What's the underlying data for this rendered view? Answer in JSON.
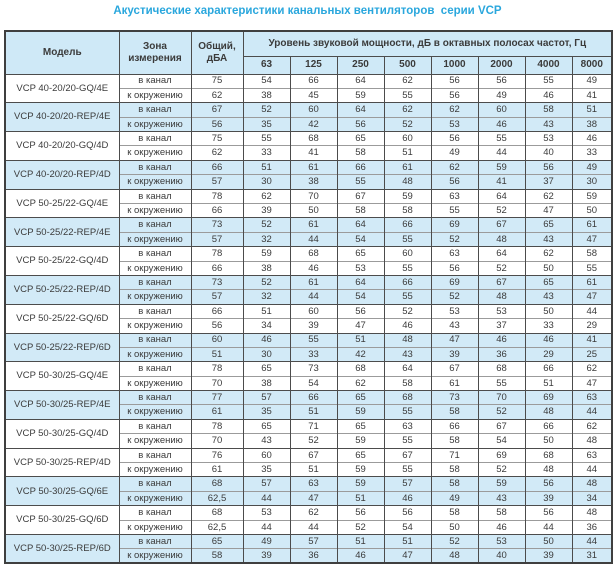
{
  "title": "Акустические характеристики канальных вентиляторов  серии VCP",
  "colors": {
    "title_text": "#2aa7dd",
    "header_fill": "#cfe9f7",
    "shaded_row_fill": "#d2eaf7",
    "border_dark": "#4c4c4c",
    "border_light": "#9b9b9b",
    "text": "#3b3b3b"
  },
  "table": {
    "headers": {
      "model": "Модель",
      "zone": "Зона измерения",
      "total": "Общий, дБА",
      "band_group": "Уровень звуковой мощности, дБ в октавных полосах частот, Гц",
      "bands": [
        "63",
        "125",
        "250",
        "500",
        "1000",
        "2000",
        "4000",
        "8000"
      ]
    },
    "groups": [
      {
        "model": "VCP 40-20/20-GQ/4E",
        "shaded": false,
        "rows": [
          {
            "zone": "в канал",
            "total": "75",
            "bands": [
              54,
              66,
              64,
              62,
              56,
              56,
              55,
              49
            ]
          },
          {
            "zone": "к окружению",
            "total": "62",
            "bands": [
              38,
              45,
              59,
              55,
              56,
              49,
              46,
              41
            ]
          }
        ]
      },
      {
        "model": "VCP 40-20/20-REP/4E",
        "shaded": true,
        "rows": [
          {
            "zone": "в канал",
            "total": "67",
            "bands": [
              52,
              60,
              64,
              62,
              62,
              60,
              58,
              51
            ]
          },
          {
            "zone": "к окружению",
            "total": "56",
            "bands": [
              35,
              42,
              56,
              52,
              53,
              46,
              43,
              38
            ]
          }
        ]
      },
      {
        "model": "VCP 40-20/20-GQ/4D",
        "shaded": false,
        "rows": [
          {
            "zone": "в канал",
            "total": "75",
            "bands": [
              55,
              68,
              65,
              60,
              56,
              55,
              53,
              46
            ]
          },
          {
            "zone": "к окружению",
            "total": "62",
            "bands": [
              33,
              41,
              58,
              51,
              49,
              44,
              40,
              33
            ]
          }
        ]
      },
      {
        "model": "VCP 40-20/20-REP/4D",
        "shaded": true,
        "rows": [
          {
            "zone": "в канал",
            "total": "66",
            "bands": [
              51,
              61,
              66,
              61,
              62,
              59,
              56,
              49
            ]
          },
          {
            "zone": "к окружению",
            "total": "57",
            "bands": [
              30,
              38,
              55,
              48,
              56,
              41,
              37,
              30
            ]
          }
        ]
      },
      {
        "model": "VCP 50-25/22-GQ/4E",
        "shaded": false,
        "rows": [
          {
            "zone": "в канал",
            "total": "78",
            "bands": [
              62,
              70,
              67,
              59,
              63,
              64,
              62,
              59
            ]
          },
          {
            "zone": "к окружению",
            "total": "66",
            "bands": [
              39,
              50,
              58,
              58,
              55,
              52,
              47,
              50
            ]
          }
        ]
      },
      {
        "model": "VCP 50-25/22-REP/4E",
        "shaded": true,
        "rows": [
          {
            "zone": "в канал",
            "total": "73",
            "bands": [
              52,
              61,
              64,
              66,
              69,
              67,
              65,
              61
            ]
          },
          {
            "zone": "к окружению",
            "total": "57",
            "bands": [
              32,
              44,
              54,
              55,
              52,
              48,
              43,
              47
            ]
          }
        ]
      },
      {
        "model": "VCP 50-25/22-GQ/4D",
        "shaded": false,
        "rows": [
          {
            "zone": "в канал",
            "total": "78",
            "bands": [
              59,
              68,
              65,
              60,
              63,
              64,
              62,
              58
            ]
          },
          {
            "zone": "к окружению",
            "total": "66",
            "bands": [
              38,
              46,
              53,
              55,
              56,
              52,
              50,
              55
            ]
          }
        ]
      },
      {
        "model": "VCP 50-25/22-REP/4D",
        "shaded": true,
        "rows": [
          {
            "zone": "в канал",
            "total": "73",
            "bands": [
              52,
              61,
              64,
              66,
              69,
              67,
              65,
              61
            ]
          },
          {
            "zone": "к окружению",
            "total": "57",
            "bands": [
              32,
              44,
              54,
              55,
              52,
              48,
              43,
              47
            ]
          }
        ]
      },
      {
        "model": "VCP 50-25/22-GQ/6D",
        "shaded": false,
        "rows": [
          {
            "zone": "в канал",
            "total": "66",
            "bands": [
              51,
              60,
              56,
              52,
              53,
              53,
              50,
              44
            ]
          },
          {
            "zone": "к окружению",
            "total": "56",
            "bands": [
              34,
              39,
              47,
              46,
              43,
              37,
              33,
              29
            ]
          }
        ]
      },
      {
        "model": "VCP 50-25/22-REP/6D",
        "shaded": true,
        "rows": [
          {
            "zone": "в канал",
            "total": "60",
            "bands": [
              46,
              55,
              51,
              48,
              47,
              46,
              46,
              41
            ]
          },
          {
            "zone": "к окружению",
            "total": "51",
            "bands": [
              30,
              33,
              42,
              43,
              39,
              36,
              29,
              25
            ]
          }
        ]
      },
      {
        "model": "VCP 50-30/25-GQ/4E",
        "shaded": false,
        "rows": [
          {
            "zone": "в канал",
            "total": "78",
            "bands": [
              65,
              73,
              68,
              64,
              67,
              68,
              66,
              62
            ]
          },
          {
            "zone": "к окружению",
            "total": "70",
            "bands": [
              38,
              54,
              62,
              58,
              61,
              55,
              51,
              47
            ]
          }
        ]
      },
      {
        "model": "VCP 50-30/25-REP/4E",
        "shaded": true,
        "rows": [
          {
            "zone": "в канал",
            "total": "77",
            "bands": [
              57,
              66,
              65,
              68,
              73,
              70,
              69,
              63
            ]
          },
          {
            "zone": "к окружению",
            "total": "61",
            "bands": [
              35,
              51,
              59,
              55,
              58,
              52,
              48,
              44
            ]
          }
        ]
      },
      {
        "model": "VCP 50-30/25-GQ/4D",
        "shaded": false,
        "rows": [
          {
            "zone": "в канал",
            "total": "78",
            "bands": [
              65,
              71,
              65,
              63,
              66,
              67,
              66,
              62
            ]
          },
          {
            "zone": "к окружению",
            "total": "70",
            "bands": [
              43,
              52,
              59,
              55,
              58,
              54,
              50,
              48
            ]
          }
        ]
      },
      {
        "model": "VCP 50-30/25-REP/4D",
        "shaded": false,
        "rows": [
          {
            "zone": "в канал",
            "total": "76",
            "bands": [
              60,
              67,
              65,
              67,
              71,
              69,
              68,
              63
            ]
          },
          {
            "zone": "к окружению",
            "total": "61",
            "bands": [
              35,
              51,
              59,
              55,
              58,
              52,
              48,
              44
            ]
          }
        ]
      },
      {
        "model": "VCP 50-30/25-GQ/6E",
        "shaded": true,
        "rows": [
          {
            "zone": "в канал",
            "total": "68",
            "bands": [
              57,
              63,
              59,
              57,
              58,
              59,
              56,
              48
            ]
          },
          {
            "zone": "к окружению",
            "total": "62,5",
            "bands": [
              44,
              47,
              51,
              46,
              49,
              43,
              39,
              34
            ]
          }
        ]
      },
      {
        "model": "VCP 50-30/25-GQ/6D",
        "shaded": false,
        "rows": [
          {
            "zone": "в канал",
            "total": "68",
            "bands": [
              53,
              62,
              56,
              56,
              58,
              58,
              56,
              48
            ]
          },
          {
            "zone": "к окружению",
            "total": "62,5",
            "bands": [
              44,
              44,
              52,
              54,
              50,
              46,
              44,
              36
            ]
          }
        ]
      },
      {
        "model": "VCP 50-30/25-REP/6D",
        "shaded": true,
        "rows": [
          {
            "zone": "в канал",
            "total": "65",
            "bands": [
              49,
              57,
              51,
              51,
              52,
              53,
              50,
              44
            ]
          },
          {
            "zone": "к окружению",
            "total": "58",
            "bands": [
              39,
              36,
              46,
              47,
              48,
              40,
              39,
              31
            ]
          }
        ]
      }
    ]
  }
}
